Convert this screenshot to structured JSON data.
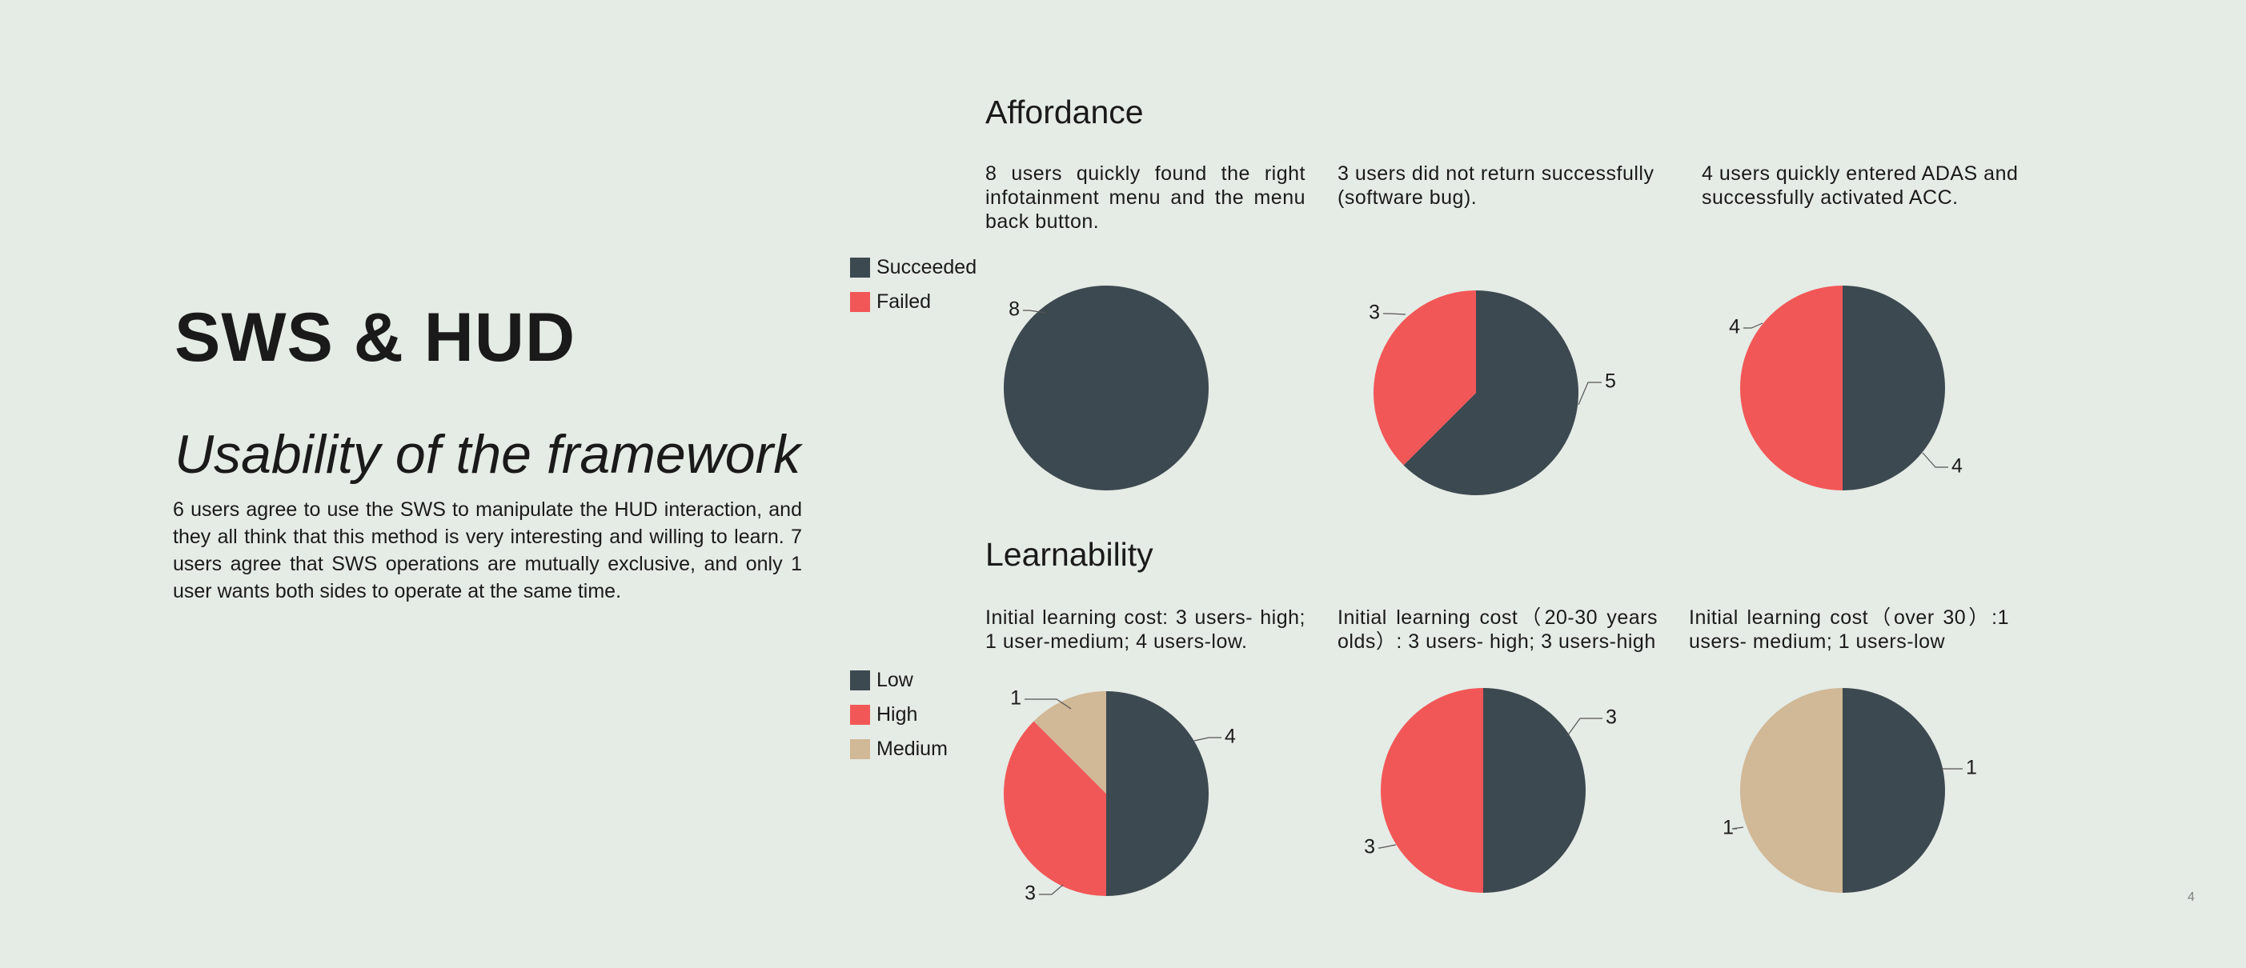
{
  "slide": {
    "title": "SWS & HUD",
    "subtitle": "Usability of the framework",
    "body": "6 users agree to use the SWS to manipulate the HUD interaction, and they all think that this method is very interesting and willing to learn. 7 users agree that SWS operations are mutually exclusive, and only 1 user wants both sides to operate at the same time.",
    "page_number": "4"
  },
  "affordance": {
    "heading": "Affordance",
    "legend": [
      {
        "label": "Succeeded",
        "color": "#3d4951"
      },
      {
        "label": "Failed",
        "color": "#f25757"
      }
    ]
  },
  "learnability": {
    "heading": "Learnability",
    "legend": [
      {
        "label": "Low",
        "color": "#3d4951"
      },
      {
        "label": "High",
        "color": "#f25757"
      },
      {
        "label": "Medium",
        "color": "#d1b896"
      }
    ]
  },
  "chart_data": [
    {
      "type": "pie",
      "title": "8 users quickly found the right infotainment menu and the menu back button.",
      "categories": [
        "Succeeded"
      ],
      "values": [
        8
      ],
      "colors": [
        "#3d4951"
      ],
      "data_labels": [
        "8"
      ]
    },
    {
      "type": "pie",
      "title": "3 users did not return successfully (software bug).",
      "categories": [
        "Succeeded",
        "Failed"
      ],
      "values": [
        5,
        3
      ],
      "colors": [
        "#3d4951",
        "#f25757"
      ],
      "data_labels": [
        "5",
        "3"
      ]
    },
    {
      "type": "pie",
      "title": "4 users quickly entered ADAS and successfully activated ACC.",
      "categories": [
        "Succeeded",
        "Failed"
      ],
      "values": [
        4,
        4
      ],
      "colors": [
        "#3d4951",
        "#f25757"
      ],
      "data_labels": [
        "4",
        "4"
      ]
    },
    {
      "type": "pie",
      "title": "Initial learning cost: 3 users- high; 1 user-medium; 4 users-low.",
      "categories": [
        "Low",
        "High",
        "Medium"
      ],
      "values": [
        4,
        3,
        1
      ],
      "colors": [
        "#3d4951",
        "#f25757",
        "#d1b896"
      ],
      "data_labels": [
        "4",
        "3",
        "1"
      ]
    },
    {
      "type": "pie",
      "title": "Initial learning cost（20-30 years olds）: 3 users- high; 3 users-high",
      "categories": [
        "Low",
        "High"
      ],
      "values": [
        3,
        3
      ],
      "colors": [
        "#3d4951",
        "#f25757"
      ],
      "data_labels": [
        "3",
        "3"
      ]
    },
    {
      "type": "pie",
      "title": "Initial learning cost（over 30）:1 users- medium; 1 users-low",
      "categories": [
        "Low",
        "Medium"
      ],
      "values": [
        1,
        1
      ],
      "colors": [
        "#3d4951",
        "#d1b896"
      ],
      "data_labels": [
        "1",
        "1"
      ]
    }
  ]
}
